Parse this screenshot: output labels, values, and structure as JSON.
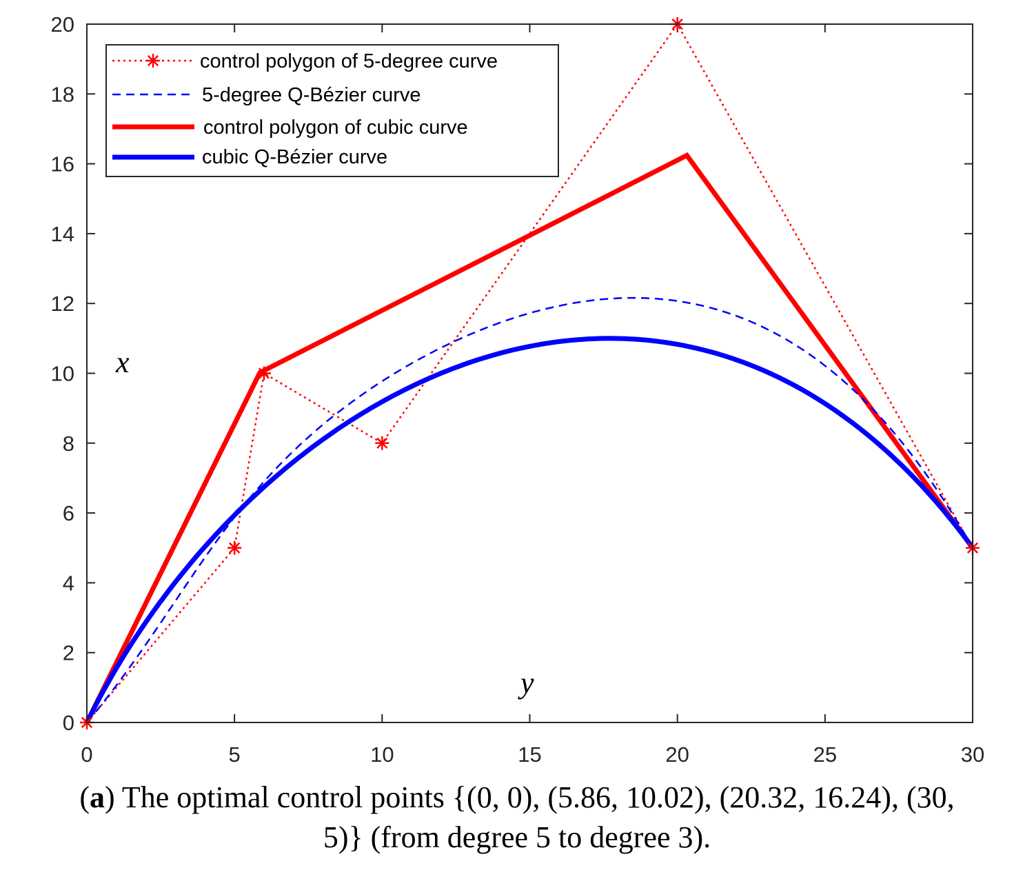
{
  "chart_data": {
    "type": "line",
    "x_axis_label": "y",
    "y_axis_label": "x",
    "xlim": [
      0,
      30
    ],
    "ylim": [
      0,
      20
    ],
    "x_ticks": [
      "0",
      "5",
      "10",
      "15",
      "20",
      "25",
      "30"
    ],
    "y_ticks": [
      "0",
      "2",
      "4",
      "6",
      "8",
      "10",
      "12",
      "14",
      "16",
      "18",
      "20"
    ],
    "grid": false,
    "legend_position": "top-left",
    "series": [
      {
        "name": "control polygon of 5-degree curve",
        "style": "dotted-with-star-markers",
        "color": "#ff0000",
        "points": [
          [
            0,
            0
          ],
          [
            5,
            5
          ],
          [
            6,
            10
          ],
          [
            10,
            8
          ],
          [
            20,
            20
          ],
          [
            30,
            5
          ]
        ]
      },
      {
        "name": "5-degree Q-Bézier curve",
        "style": "dashed",
        "color": "#0000ff",
        "control_points": [
          [
            0,
            0
          ],
          [
            5,
            5
          ],
          [
            6,
            10
          ],
          [
            10,
            8
          ],
          [
            20,
            20
          ],
          [
            30,
            5
          ]
        ]
      },
      {
        "name": "control polygon of cubic curve",
        "style": "solid-thick",
        "color": "#ff0000",
        "points": [
          [
            0,
            0
          ],
          [
            5.86,
            10.02
          ],
          [
            20.32,
            16.24
          ],
          [
            30,
            5
          ]
        ]
      },
      {
        "name": "cubic Q-Bézier curve",
        "style": "solid-thick",
        "color": "#0000ff",
        "control_points": [
          [
            0,
            0
          ],
          [
            5.86,
            10.02
          ],
          [
            20.32,
            16.24
          ],
          [
            30,
            5
          ]
        ]
      }
    ]
  },
  "caption": {
    "label": "a",
    "text_line1": "The optimal control points {(0, 0), (5.86, 10.02), (20.32, 16.24), (30,",
    "text_line2": "5)} (from degree 5 to degree 3)."
  }
}
